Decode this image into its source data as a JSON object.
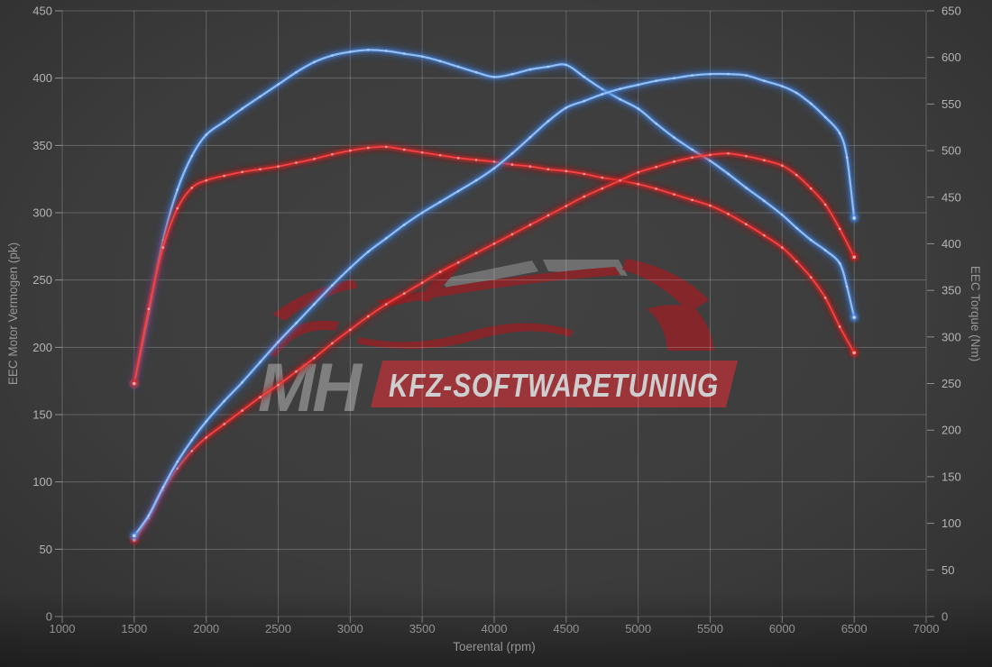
{
  "watermark": {
    "brand_initials": "MH",
    "brand_text": "KFZ-SOFTWARETUNING",
    "band_color": "#a53439",
    "car_color": "#8c2428",
    "roof_color": "#757575",
    "initials_color": "#878787",
    "band_text_color": "#dedede"
  },
  "colors": {
    "background_center": "#424242",
    "background_edge": "#2e2e2e",
    "grid": "rgba(212,212,212,0.27)",
    "tick": "#8f8f8f",
    "tuned_accent": "#4585dd",
    "stock_accent": "#d42222"
  },
  "chart_data": {
    "type": "line",
    "xlabel": "Toerental (rpm)",
    "x_range": [
      1000,
      7000
    ],
    "x_tick_step": 500,
    "x_ticks": [
      1000,
      1500,
      2000,
      2500,
      3000,
      3500,
      4000,
      4500,
      5000,
      5500,
      6000,
      6500,
      7000
    ],
    "left_axis": {
      "label": "EEC Motor Vermogen (pk)",
      "range": [
        0,
        450
      ],
      "ticks": [
        0,
        50,
        100,
        150,
        200,
        250,
        300,
        350,
        400,
        450
      ]
    },
    "right_axis": {
      "label": "EEC Torque (Nm)",
      "range": [
        0,
        650
      ],
      "ticks": [
        0,
        50,
        100,
        150,
        200,
        250,
        300,
        350,
        400,
        450,
        500,
        550,
        600,
        650
      ]
    },
    "grid": "on",
    "legend": "none",
    "series": [
      {
        "name": "tuned-torque",
        "color_key": "blue",
        "axis": "right",
        "unit": "Nm",
        "points": [
          [
            1500,
            250
          ],
          [
            1600,
            326
          ],
          [
            1700,
            404
          ],
          [
            1800,
            458
          ],
          [
            1900,
            494
          ],
          [
            2000,
            517
          ],
          [
            2125,
            531
          ],
          [
            2250,
            545
          ],
          [
            2375,
            558
          ],
          [
            2500,
            571
          ],
          [
            2625,
            584
          ],
          [
            2750,
            595
          ],
          [
            2875,
            602
          ],
          [
            3000,
            606
          ],
          [
            3125,
            608
          ],
          [
            3250,
            607
          ],
          [
            3375,
            604
          ],
          [
            3500,
            601
          ],
          [
            3625,
            596
          ],
          [
            3750,
            590
          ],
          [
            3875,
            584
          ],
          [
            4000,
            579
          ],
          [
            4125,
            582
          ],
          [
            4250,
            587
          ],
          [
            4375,
            590
          ],
          [
            4500,
            592
          ],
          [
            4625,
            579
          ],
          [
            4750,
            566
          ],
          [
            4875,
            555
          ],
          [
            5000,
            545
          ],
          [
            5125,
            529
          ],
          [
            5250,
            514
          ],
          [
            5375,
            501
          ],
          [
            5500,
            489
          ],
          [
            5625,
            475
          ],
          [
            5750,
            460
          ],
          [
            5875,
            446
          ],
          [
            6000,
            431
          ],
          [
            6100,
            417
          ],
          [
            6200,
            404
          ],
          [
            6300,
            393
          ],
          [
            6400,
            379
          ],
          [
            6450,
            354
          ],
          [
            6500,
            321
          ]
        ]
      },
      {
        "name": "stock-torque",
        "color_key": "red",
        "axis": "right",
        "unit": "Nm",
        "points": [
          [
            1500,
            250
          ],
          [
            1600,
            330
          ],
          [
            1700,
            396
          ],
          [
            1800,
            438
          ],
          [
            1900,
            460
          ],
          [
            2000,
            468
          ],
          [
            2125,
            473
          ],
          [
            2250,
            477
          ],
          [
            2375,
            480
          ],
          [
            2500,
            483
          ],
          [
            2625,
            487
          ],
          [
            2750,
            491
          ],
          [
            2875,
            496
          ],
          [
            3000,
            500
          ],
          [
            3125,
            503
          ],
          [
            3250,
            504
          ],
          [
            3375,
            501
          ],
          [
            3500,
            498
          ],
          [
            3625,
            495
          ],
          [
            3750,
            492
          ],
          [
            3875,
            490
          ],
          [
            4000,
            488
          ],
          [
            4125,
            485
          ],
          [
            4250,
            483
          ],
          [
            4375,
            480
          ],
          [
            4500,
            478
          ],
          [
            4625,
            475
          ],
          [
            4750,
            471
          ],
          [
            4875,
            468
          ],
          [
            5000,
            464
          ],
          [
            5125,
            459
          ],
          [
            5250,
            453
          ],
          [
            5375,
            447
          ],
          [
            5500,
            441
          ],
          [
            5625,
            432
          ],
          [
            5750,
            421
          ],
          [
            5875,
            409
          ],
          [
            6000,
            396
          ],
          [
            6100,
            381
          ],
          [
            6200,
            364
          ],
          [
            6300,
            342
          ],
          [
            6400,
            311
          ],
          [
            6500,
            283
          ]
        ]
      },
      {
        "name": "stock-power",
        "color_key": "red",
        "axis": "left",
        "unit": "pk",
        "points": [
          [
            1500,
            57
          ],
          [
            1600,
            73
          ],
          [
            1700,
            94
          ],
          [
            1800,
            110
          ],
          [
            1900,
            123
          ],
          [
            2000,
            133
          ],
          [
            2125,
            143
          ],
          [
            2250,
            153
          ],
          [
            2375,
            163
          ],
          [
            2500,
            172
          ],
          [
            2625,
            182
          ],
          [
            2750,
            192
          ],
          [
            2875,
            203
          ],
          [
            3000,
            213
          ],
          [
            3125,
            223
          ],
          [
            3250,
            232
          ],
          [
            3375,
            240
          ],
          [
            3500,
            248
          ],
          [
            3625,
            256
          ],
          [
            3750,
            263
          ],
          [
            3875,
            270
          ],
          [
            4000,
            277
          ],
          [
            4125,
            284
          ],
          [
            4250,
            291
          ],
          [
            4375,
            298
          ],
          [
            4500,
            305
          ],
          [
            4625,
            312
          ],
          [
            4750,
            318
          ],
          [
            4875,
            324
          ],
          [
            5000,
            330
          ],
          [
            5125,
            334
          ],
          [
            5250,
            338
          ],
          [
            5375,
            341
          ],
          [
            5500,
            343
          ],
          [
            5625,
            344
          ],
          [
            5750,
            342
          ],
          [
            5875,
            339
          ],
          [
            6000,
            335
          ],
          [
            6100,
            328
          ],
          [
            6200,
            318
          ],
          [
            6300,
            306
          ],
          [
            6400,
            288
          ],
          [
            6500,
            267
          ]
        ]
      },
      {
        "name": "tuned-power",
        "color_key": "blue",
        "axis": "left",
        "unit": "pk",
        "points": [
          [
            1500,
            60
          ],
          [
            1600,
            75
          ],
          [
            1700,
            96
          ],
          [
            1800,
            115
          ],
          [
            1900,
            131
          ],
          [
            2000,
            145
          ],
          [
            2125,
            160
          ],
          [
            2250,
            174
          ],
          [
            2375,
            189
          ],
          [
            2500,
            204
          ],
          [
            2625,
            218
          ],
          [
            2750,
            232
          ],
          [
            2875,
            246
          ],
          [
            3000,
            259
          ],
          [
            3125,
            271
          ],
          [
            3250,
            281
          ],
          [
            3375,
            291
          ],
          [
            3500,
            300
          ],
          [
            3625,
            308
          ],
          [
            3750,
            316
          ],
          [
            3875,
            324
          ],
          [
            4000,
            333
          ],
          [
            4125,
            344
          ],
          [
            4250,
            356
          ],
          [
            4375,
            368
          ],
          [
            4500,
            378
          ],
          [
            4625,
            383
          ],
          [
            4750,
            388
          ],
          [
            4875,
            392
          ],
          [
            5000,
            395
          ],
          [
            5125,
            398
          ],
          [
            5250,
            400
          ],
          [
            5375,
            402
          ],
          [
            5500,
            403
          ],
          [
            5625,
            403
          ],
          [
            5750,
            402
          ],
          [
            5875,
            398
          ],
          [
            6000,
            394
          ],
          [
            6100,
            389
          ],
          [
            6200,
            381
          ],
          [
            6300,
            371
          ],
          [
            6400,
            359
          ],
          [
            6450,
            341
          ],
          [
            6500,
            296
          ]
        ]
      }
    ]
  }
}
